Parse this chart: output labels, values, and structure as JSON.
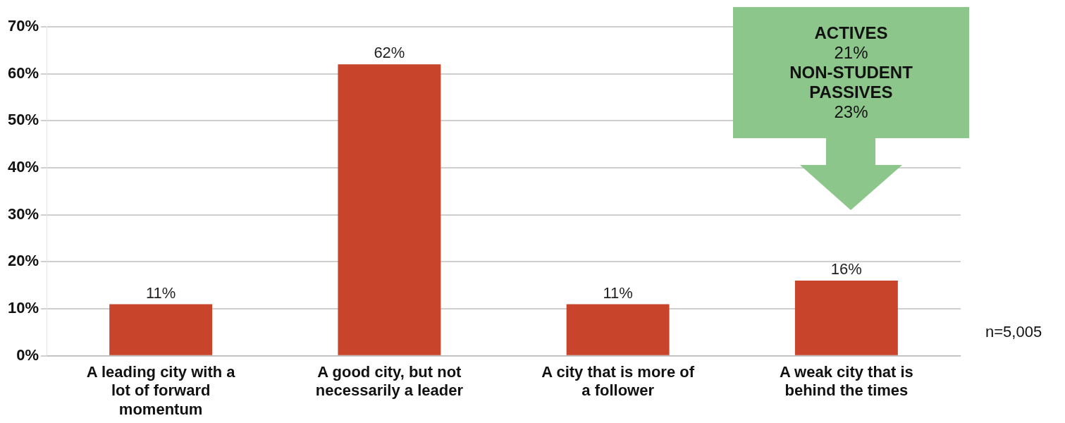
{
  "chart_data": {
    "type": "bar",
    "categories": [
      "A leading city with a lot of forward momentum",
      "A good city, but not necessarily a leader",
      "A city that is more of a follower",
      "A weak city that is behind the times"
    ],
    "values": [
      11,
      62,
      11,
      16
    ],
    "value_labels": [
      "11%",
      "62%",
      "11%",
      "16%"
    ],
    "color": "#c8442a",
    "ylim": [
      0,
      70
    ],
    "yticks": [
      {
        "value": 0,
        "label": "0%"
      },
      {
        "value": 10,
        "label": "10%"
      },
      {
        "value": 20,
        "label": "20%"
      },
      {
        "value": 30,
        "label": "30%"
      },
      {
        "value": 40,
        "label": "40%"
      },
      {
        "value": 50,
        "label": "50%"
      },
      {
        "value": 60,
        "label": "60%"
      },
      {
        "value": 70,
        "label": "70%"
      }
    ],
    "grid": "y",
    "legend": false,
    "annotations": [
      "ACTIVES",
      "21%",
      "NON-STUDENT PASSIVES",
      "23%",
      "n=5,005"
    ]
  }
}
